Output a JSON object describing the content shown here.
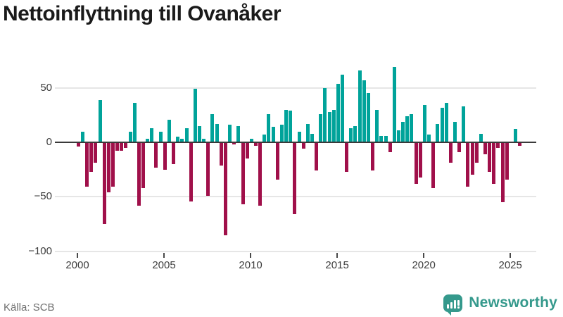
{
  "title": "Nettoinflyttning till Ovanåker",
  "footer": {
    "source": "Källa: SCB",
    "brand": "Newsworthy"
  },
  "colors": {
    "positive_bar": "#00a39a",
    "negative_bar": "#a0104a",
    "zero_line": "#3a3a3a",
    "gridline": "#e6e6e6",
    "axis_text": "#3d3d3d",
    "title_text": "#1a1a1a",
    "source_text": "#6f6f6f",
    "brand_teal": "#35998c"
  },
  "chart_data": {
    "type": "bar",
    "title": "Nettoinflyttning till Ovanåker",
    "frequency": "quarterly",
    "grid": "horizontal",
    "legend_position": "none",
    "xlabel": "",
    "ylabel": "",
    "ylim": [
      -100,
      75
    ],
    "x_ticks": [
      {
        "label": "2000",
        "year": 2000
      },
      {
        "label": "2005",
        "year": 2005
      },
      {
        "label": "2010",
        "year": 2010
      },
      {
        "label": "2015",
        "year": 2015
      },
      {
        "label": "2020",
        "year": 2020
      },
      {
        "label": "2025",
        "year": 2025
      }
    ],
    "y_ticks": [
      {
        "label": "50",
        "value": 50
      },
      {
        "label": "0",
        "value": 0
      },
      {
        "label": "−50",
        "value": -50
      },
      {
        "label": "−100",
        "value": -100
      }
    ],
    "series": [
      {
        "year": 2000,
        "values": [
          -4,
          10,
          -41,
          -27
        ]
      },
      {
        "year": 2001,
        "values": [
          -19,
          39,
          -75,
          -46
        ]
      },
      {
        "year": 2002,
        "values": [
          -41,
          -8,
          -8,
          -5
        ]
      },
      {
        "year": 2003,
        "values": [
          10,
          36,
          -58,
          -42
        ]
      },
      {
        "year": 2004,
        "values": [
          3,
          13,
          -23,
          10
        ]
      },
      {
        "year": 2005,
        "values": [
          -25,
          21,
          -20,
          5
        ]
      },
      {
        "year": 2006,
        "values": [
          3,
          13,
          -54,
          49
        ]
      },
      {
        "year": 2007,
        "values": [
          15,
          3,
          -49,
          26
        ]
      },
      {
        "year": 2008,
        "values": [
          17,
          -21,
          -85,
          16
        ]
      },
      {
        "year": 2009,
        "values": [
          -2,
          15,
          -57,
          -15
        ]
      },
      {
        "year": 2010,
        "values": [
          3,
          -3,
          -58,
          7
        ]
      },
      {
        "year": 2011,
        "values": [
          26,
          14,
          -34,
          16
        ]
      },
      {
        "year": 2012,
        "values": [
          30,
          29,
          -66,
          10
        ]
      },
      {
        "year": 2013,
        "values": [
          -6,
          17,
          8,
          -26
        ]
      },
      {
        "year": 2014,
        "values": [
          26,
          50,
          28,
          30
        ]
      },
      {
        "year": 2015,
        "values": [
          54,
          62,
          -27,
          13
        ]
      },
      {
        "year": 2016,
        "values": [
          15,
          66,
          57,
          45
        ]
      },
      {
        "year": 2017,
        "values": [
          -26,
          30,
          6,
          6
        ]
      },
      {
        "year": 2018,
        "values": [
          -9,
          69,
          11,
          19
        ]
      },
      {
        "year": 2019,
        "values": [
          24,
          26,
          -38,
          -32
        ]
      },
      {
        "year": 2020,
        "values": [
          34,
          7,
          -42,
          17
        ]
      },
      {
        "year": 2021,
        "values": [
          32,
          36,
          -19,
          19
        ]
      },
      {
        "year": 2022,
        "values": [
          -9,
          33,
          -41,
          -30
        ]
      },
      {
        "year": 2023,
        "values": [
          -19,
          8,
          -11,
          -27
        ]
      },
      {
        "year": 2024,
        "values": [
          -38,
          -5,
          -55,
          -34
        ]
      },
      {
        "year": 2025,
        "values": [
          0,
          12,
          -3
        ]
      }
    ]
  }
}
